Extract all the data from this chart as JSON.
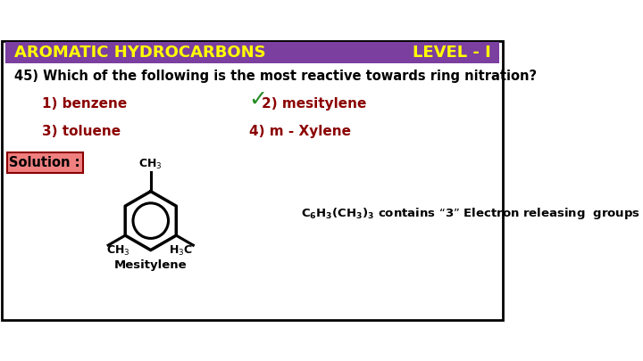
{
  "title_left": "AROMATIC HYDROCARBONS",
  "title_right": "LEVEL - I",
  "title_bg": "#7B3FA0",
  "title_text_color": "#FFFF00",
  "question": "45) Which of the following is the most reactive towards ring nitration?",
  "question_color": "#000000",
  "option1": "1) benzene",
  "option2": "2) mesitylene",
  "option3": "3) toluene",
  "option4": "4) m - Xylene",
  "option_color": "#8B0000",
  "correct_option": 2,
  "checkmark_color": "#228B22",
  "solution_box_bg": "#F08080",
  "solution_box_border": "#8B0000",
  "solution_label": "Solution :",
  "solution_text": "C₆H₃(CH₃)₃ contains “3” Electron releasing  groups",
  "solution_text_color": "#000000",
  "molecule_label": "Mesitylene",
  "bg_color": "#FFFFFF",
  "border_color": "#000000"
}
